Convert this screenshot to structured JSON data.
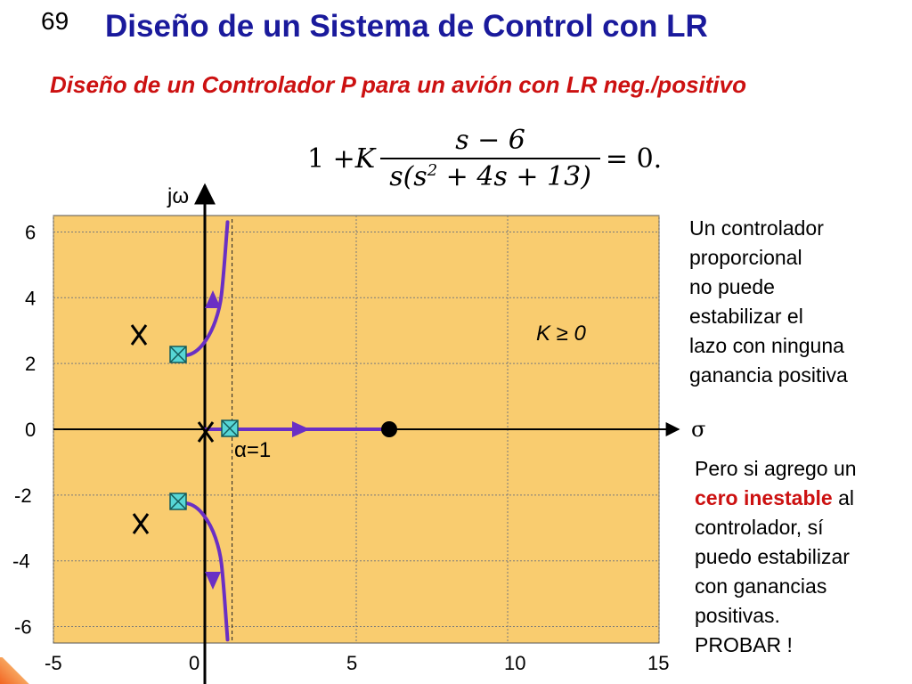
{
  "slide": {
    "number": "69",
    "title": "Diseño de un Sistema de Control con LR",
    "subtitle": "Diseño de un Controlador P para un avión con LR neg./positivo"
  },
  "equation": {
    "lhs": "1 + ",
    "gain": "K",
    "numerator": "s − 6",
    "denominator_pre": "s(s",
    "denominator_exp": "2",
    "denominator_post": " + 4s + 13)",
    "rhs": " = 0."
  },
  "colors": {
    "plot_background": "#f9cc6f",
    "locus": "#6a2fc4",
    "axis": "#000000",
    "grid": "#7a7a7a",
    "marker_fill": "#57d6d6",
    "title": "#1a1a9c",
    "highlight": "#cc1111"
  },
  "labels": {
    "gain_condition": "K ≥ 0",
    "alpha": "α=1",
    "imag_axis": "jω",
    "real_axis": "σ"
  },
  "notes": {
    "first": [
      "Un controlador",
      "proporcional",
      "no puede",
      "estabilizar el",
      "lazo con ninguna",
      "ganancia positiva"
    ],
    "second_lead": "Pero si agrego un",
    "second_highlight": "cero inestable",
    "second_after": " al",
    "second_rest": [
      "controlador, sí",
      "puedo estabilizar",
      "con ganancias",
      "positivas.",
      "PROBAR !"
    ]
  },
  "chart_data": {
    "type": "root-locus",
    "xlim": [
      -5,
      15
    ],
    "ylim": [
      -6.5,
      6.5
    ],
    "x_ticks": [
      {
        "value": -5,
        "label": "-5"
      },
      {
        "value": 0,
        "label": "0"
      },
      {
        "value": 5,
        "label": "5"
      },
      {
        "value": 10,
        "label": "10"
      },
      {
        "value": 15,
        "label": "15"
      }
    ],
    "y_ticks": [
      {
        "value": 6,
        "label": "6"
      },
      {
        "value": 4,
        "label": "4"
      },
      {
        "value": 2,
        "label": "2"
      },
      {
        "value": 0,
        "label": "0"
      },
      {
        "value": -2,
        "label": "-2"
      },
      {
        "value": -4,
        "label": "-4"
      },
      {
        "value": -6,
        "label": "-6"
      }
    ],
    "grid": true,
    "poles": [
      [
        0,
        0
      ],
      [
        -2,
        3
      ],
      [
        -2,
        -3
      ]
    ],
    "zeros": [
      [
        6,
        0
      ]
    ],
    "breakaway_points": [
      [
        0.9,
        0
      ],
      [
        -0.9,
        2.2
      ],
      [
        -0.9,
        -2.2
      ]
    ],
    "asymptote_sigma": 0.9,
    "branches": [
      {
        "name": "upper",
        "points": [
          [
            -0.9,
            2.2
          ],
          [
            -0.3,
            2.3
          ],
          [
            0.2,
            2.9
          ],
          [
            0.5,
            3.7
          ],
          [
            0.6,
            4.5
          ],
          [
            0.75,
            6.3
          ]
        ]
      },
      {
        "name": "lower",
        "points": [
          [
            -0.9,
            -2.2
          ],
          [
            -0.3,
            -2.3
          ],
          [
            0.2,
            -2.9
          ],
          [
            0.5,
            -3.7
          ],
          [
            0.6,
            -4.5
          ],
          [
            0.75,
            -6.4
          ]
        ]
      },
      {
        "name": "real-axis",
        "points": [
          [
            0,
            0
          ],
          [
            6,
            0
          ]
        ]
      }
    ]
  }
}
